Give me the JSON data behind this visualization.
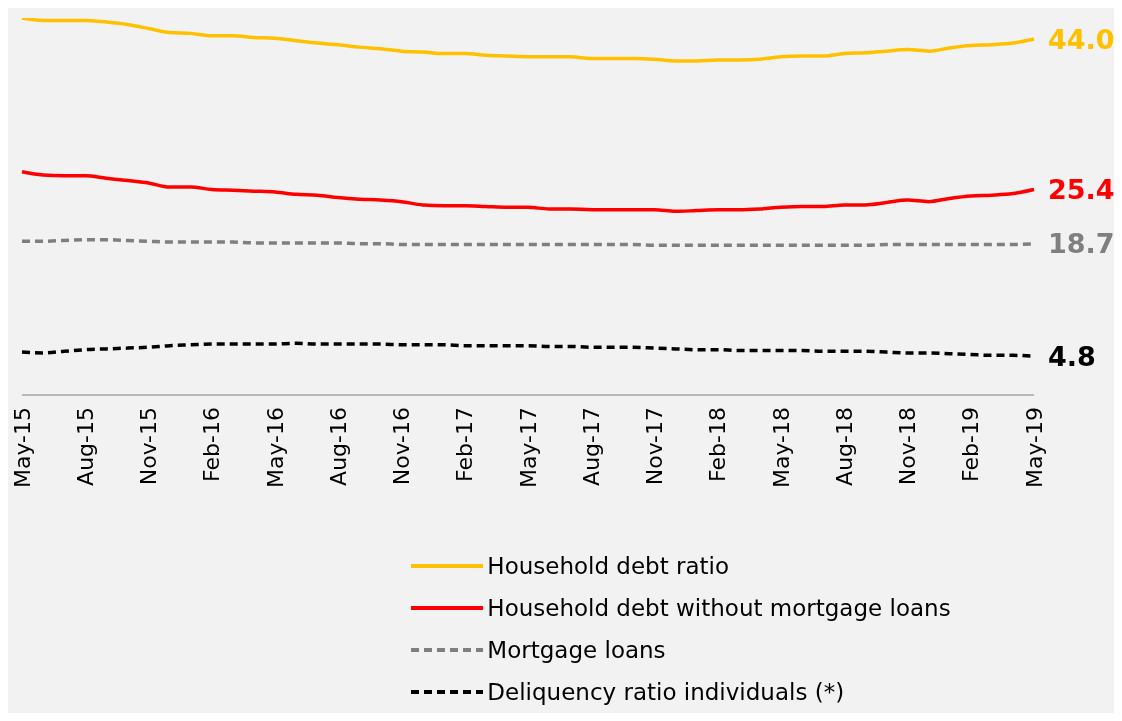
{
  "chart_data": {
    "type": "line",
    "categories": [
      "May-15",
      null,
      null,
      "Aug-15",
      null,
      null,
      "Nov-15",
      null,
      null,
      "Feb-16",
      null,
      null,
      "May-16",
      null,
      null,
      "Aug-16",
      null,
      null,
      "Nov-16",
      null,
      null,
      "Feb-17",
      null,
      null,
      "May-17",
      null,
      null,
      "Aug-17",
      null,
      null,
      "Nov-17",
      null,
      null,
      "Feb-18",
      null,
      null,
      "May-18",
      null,
      null,
      "Aug-18",
      null,
      null,
      "Nov-18",
      null,
      null,
      "Feb-19",
      null,
      null,
      "May-19"
    ],
    "series": [
      {
        "name": "Household debt ratio",
        "color": "#ffc000",
        "line_style": "solid",
        "values": [
          46.6,
          46.3,
          46.3,
          46.3,
          46.1,
          45.8,
          45.3,
          44.8,
          44.7,
          44.4,
          44.4,
          44.2,
          44.1,
          43.8,
          43.5,
          43.3,
          43.0,
          42.8,
          42.5,
          42.4,
          42.2,
          42.2,
          42.0,
          41.9,
          41.8,
          41.8,
          41.8,
          41.6,
          41.6,
          41.6,
          41.5,
          41.3,
          41.3,
          41.4,
          41.4,
          41.5,
          41.8,
          41.9,
          41.9,
          42.2,
          42.3,
          42.5,
          42.7,
          42.5,
          42.9,
          43.2,
          43.3,
          43.5,
          44.0
        ],
        "value_labels": [
          null,
          null,
          null,
          null,
          null,
          null,
          null,
          null,
          null,
          null,
          null,
          null,
          null,
          null,
          null,
          null,
          null,
          null,
          null,
          null,
          null,
          null,
          null,
          null,
          null,
          null,
          null,
          null,
          null,
          null,
          null,
          null,
          null,
          null,
          null,
          null,
          null,
          null,
          null,
          null,
          null,
          null,
          null,
          null,
          null,
          null,
          null,
          null,
          "44.0"
        ]
      },
      {
        "name": "Household debt without mortgage loans",
        "color": "#ff0000",
        "line_style": "solid",
        "values": [
          27.6,
          27.2,
          27.1,
          27.1,
          26.8,
          26.5,
          26.2,
          25.7,
          25.7,
          25.4,
          25.3,
          25.2,
          25.1,
          24.8,
          24.7,
          24.4,
          24.2,
          24.1,
          23.9,
          23.5,
          23.4,
          23.4,
          23.3,
          23.2,
          23.2,
          23.0,
          23.0,
          22.9,
          22.9,
          22.9,
          22.9,
          22.7,
          22.8,
          22.9,
          22.9,
          23.0,
          23.2,
          23.3,
          23.3,
          23.5,
          23.5,
          23.8,
          24.1,
          23.9,
          24.3,
          24.6,
          24.7,
          24.9,
          25.4
        ],
        "value_labels": [
          null,
          null,
          null,
          null,
          null,
          null,
          null,
          null,
          null,
          null,
          null,
          null,
          null,
          null,
          null,
          null,
          null,
          null,
          null,
          null,
          null,
          null,
          null,
          null,
          null,
          null,
          null,
          null,
          null,
          null,
          null,
          null,
          null,
          null,
          null,
          null,
          null,
          null,
          null,
          null,
          null,
          null,
          null,
          null,
          null,
          null,
          null,
          null,
          "25.4"
        ]
      },
      {
        "name": "Mortgage loans",
        "color": "#7f7f7f",
        "line_style": "dashed",
        "values": [
          19.0,
          19.0,
          19.1,
          19.2,
          19.2,
          19.1,
          19.0,
          18.9,
          18.9,
          18.9,
          18.9,
          18.8,
          18.8,
          18.8,
          18.8,
          18.8,
          18.7,
          18.7,
          18.6,
          18.6,
          18.6,
          18.6,
          18.6,
          18.6,
          18.6,
          18.6,
          18.6,
          18.6,
          18.6,
          18.6,
          18.5,
          18.5,
          18.5,
          18.5,
          18.5,
          18.5,
          18.5,
          18.5,
          18.5,
          18.5,
          18.5,
          18.6,
          18.6,
          18.6,
          18.6,
          18.6,
          18.6,
          18.6,
          18.7
        ],
        "value_labels": [
          null,
          null,
          null,
          null,
          null,
          null,
          null,
          null,
          null,
          null,
          null,
          null,
          null,
          null,
          null,
          null,
          null,
          null,
          null,
          null,
          null,
          null,
          null,
          null,
          null,
          null,
          null,
          null,
          null,
          null,
          null,
          null,
          null,
          null,
          null,
          null,
          null,
          null,
          null,
          null,
          null,
          null,
          null,
          null,
          null,
          null,
          null,
          null,
          "18.7"
        ]
      },
      {
        "name": "Deliquency ratio individuals (*)",
        "color": "#000000",
        "line_style": "dashed",
        "values": [
          5.3,
          5.2,
          5.4,
          5.6,
          5.7,
          5.8,
          5.9,
          6.1,
          6.2,
          6.3,
          6.3,
          6.3,
          6.3,
          6.4,
          6.3,
          6.3,
          6.3,
          6.3,
          6.2,
          6.2,
          6.2,
          6.1,
          6.1,
          6.1,
          6.1,
          6.0,
          6.0,
          5.9,
          5.9,
          5.9,
          5.8,
          5.7,
          5.6,
          5.6,
          5.5,
          5.5,
          5.5,
          5.5,
          5.4,
          5.4,
          5.4,
          5.3,
          5.2,
          5.2,
          5.1,
          5.0,
          4.9,
          4.9,
          4.8
        ],
        "value_labels": [
          null,
          null,
          null,
          null,
          null,
          null,
          null,
          null,
          null,
          null,
          null,
          null,
          null,
          null,
          null,
          null,
          null,
          null,
          null,
          null,
          null,
          null,
          null,
          null,
          null,
          null,
          null,
          null,
          null,
          null,
          null,
          null,
          null,
          null,
          null,
          null,
          null,
          null,
          null,
          null,
          null,
          null,
          null,
          null,
          null,
          null,
          null,
          null,
          "4.8"
        ]
      }
    ],
    "legend": "bottom"
  }
}
